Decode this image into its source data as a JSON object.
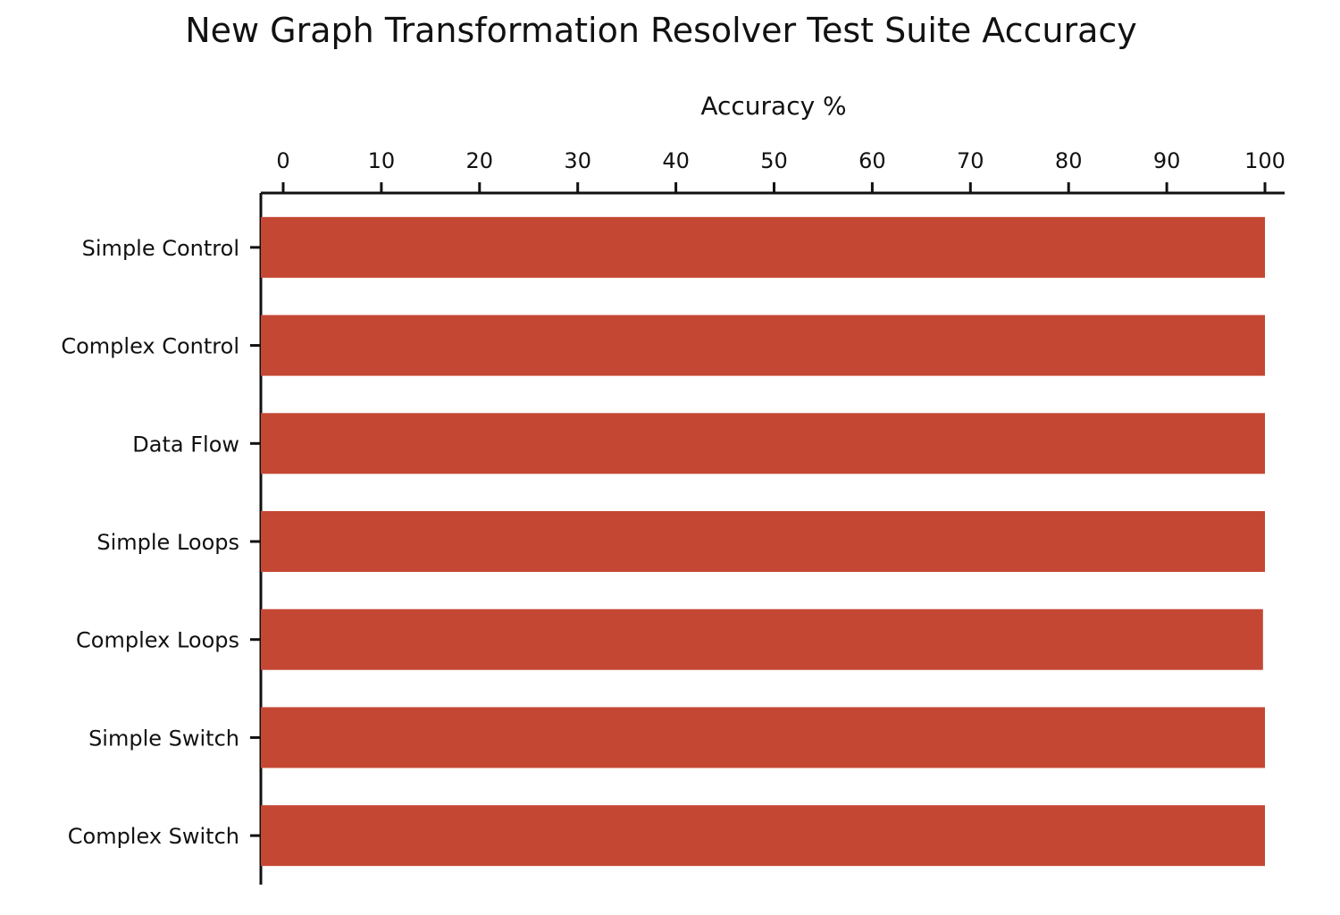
{
  "chart_data": {
    "type": "bar",
    "orientation": "horizontal",
    "title": "New Graph Transformation Resolver Test Suite Accuracy",
    "xlabel": "Accuracy %",
    "ylabel": "",
    "xlim": [
      0,
      100
    ],
    "x_ticks": [
      "0",
      "10",
      "20",
      "30",
      "40",
      "50",
      "60",
      "70",
      "80",
      "90",
      "100"
    ],
    "x_axis_position": "top",
    "grid": false,
    "legend": "none",
    "bar_color": "#c44733",
    "categories": [
      "Simple Control",
      "Complex Control",
      "Data Flow",
      "Simple Loops",
      "Complex Loops",
      "Simple Switch",
      "Complex Switch"
    ],
    "values": [
      100,
      100,
      100,
      100,
      99.8,
      100,
      100
    ]
  }
}
